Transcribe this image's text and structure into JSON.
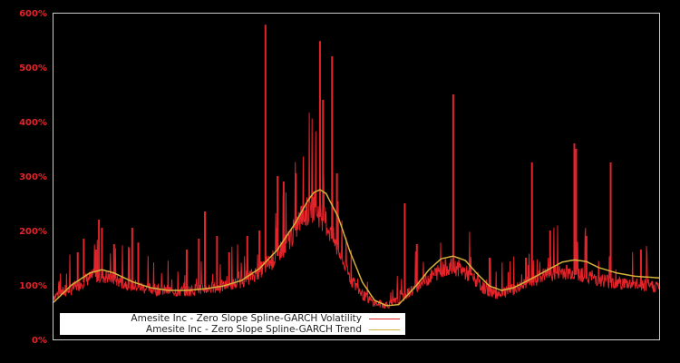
{
  "chart_data": {
    "type": "line",
    "title": "",
    "xlabel": "",
    "ylabel": "",
    "ylim": [
      0,
      600
    ],
    "y_tick_labels": [
      "0%",
      "100%",
      "200%",
      "300%",
      "400%",
      "500%",
      "600%"
    ],
    "y_ticks": [
      0,
      100,
      200,
      300,
      400,
      500,
      600
    ],
    "grid": false,
    "legend_position": "lower-left inside",
    "background": "#000000",
    "x_range_index": [
      0,
      100
    ],
    "series": [
      {
        "name": "Amesite Inc - Zero Slope Spline-GARCH Volatility",
        "color": "#e3242b",
        "baseline_points": [
          [
            0,
            78
          ],
          [
            3,
            90
          ],
          [
            5,
            105
          ],
          [
            7,
            115
          ],
          [
            9,
            112
          ],
          [
            12,
            100
          ],
          [
            15,
            92
          ],
          [
            18,
            88
          ],
          [
            21,
            86
          ],
          [
            24,
            90
          ],
          [
            27,
            93
          ],
          [
            30,
            100
          ],
          [
            33,
            115
          ],
          [
            36,
            140
          ],
          [
            39,
            180
          ],
          [
            41,
            220
          ],
          [
            43,
            240
          ],
          [
            45,
            210
          ],
          [
            47,
            160
          ],
          [
            49,
            110
          ],
          [
            51,
            80
          ],
          [
            53,
            65
          ],
          [
            55,
            62
          ],
          [
            57,
            70
          ],
          [
            60,
            95
          ],
          [
            63,
            118
          ],
          [
            65,
            130
          ],
          [
            67,
            128
          ],
          [
            69,
            112
          ],
          [
            71,
            92
          ],
          [
            73,
            82
          ],
          [
            75,
            85
          ],
          [
            78,
            100
          ],
          [
            81,
            115
          ],
          [
            84,
            122
          ],
          [
            87,
            118
          ],
          [
            90,
            108
          ],
          [
            93,
            102
          ],
          [
            96,
            98
          ],
          [
            100,
            95
          ]
        ],
        "spikes": [
          [
            2,
            100
          ],
          [
            4,
            160
          ],
          [
            5,
            185
          ],
          [
            7,
            165
          ],
          [
            7.5,
            220
          ],
          [
            8,
            205
          ],
          [
            10,
            175
          ],
          [
            13,
            205
          ],
          [
            14,
            178
          ],
          [
            22,
            165
          ],
          [
            24,
            185
          ],
          [
            25,
            235
          ],
          [
            27,
            190
          ],
          [
            29,
            160
          ],
          [
            32,
            190
          ],
          [
            34,
            200
          ],
          [
            35,
            578
          ],
          [
            37,
            300
          ],
          [
            38,
            290
          ],
          [
            40,
            305
          ],
          [
            44,
            548
          ],
          [
            44.5,
            440
          ],
          [
            46,
            520
          ],
          [
            46.8,
            305
          ],
          [
            58,
            250
          ],
          [
            60,
            175
          ],
          [
            66,
            450
          ],
          [
            72,
            150
          ],
          [
            78,
            150
          ],
          [
            79,
            325
          ],
          [
            82,
            200
          ],
          [
            86,
            360
          ],
          [
            86.3,
            350
          ],
          [
            88,
            190
          ],
          [
            92,
            325
          ],
          [
            97,
            165
          ]
        ]
      },
      {
        "name": "Amesite Inc - Zero Slope Spline-GARCH Trend",
        "color": "#d4b13a",
        "points": [
          [
            0,
            68
          ],
          [
            3,
            100
          ],
          [
            6,
            122
          ],
          [
            8,
            128
          ],
          [
            10,
            122
          ],
          [
            13,
            106
          ],
          [
            16,
            95
          ],
          [
            19,
            90
          ],
          [
            22,
            90
          ],
          [
            25,
            93
          ],
          [
            28,
            98
          ],
          [
            31,
            108
          ],
          [
            34,
            130
          ],
          [
            37,
            165
          ],
          [
            40,
            215
          ],
          [
            42,
            255
          ],
          [
            43,
            270
          ],
          [
            44,
            275
          ],
          [
            45,
            268
          ],
          [
            47,
            225
          ],
          [
            49,
            160
          ],
          [
            51,
            105
          ],
          [
            53,
            72
          ],
          [
            55,
            62
          ],
          [
            57,
            64
          ],
          [
            60,
            100
          ],
          [
            62,
            128
          ],
          [
            64,
            148
          ],
          [
            66,
            153
          ],
          [
            68,
            145
          ],
          [
            70,
            120
          ],
          [
            72,
            98
          ],
          [
            74,
            90
          ],
          [
            76,
            95
          ],
          [
            79,
            112
          ],
          [
            82,
            130
          ],
          [
            84,
            142
          ],
          [
            86,
            146
          ],
          [
            88,
            143
          ],
          [
            90,
            132
          ],
          [
            93,
            122
          ],
          [
            96,
            116
          ],
          [
            100,
            113
          ]
        ]
      }
    ]
  },
  "legend": {
    "items": [
      {
        "label": "Amesite Inc - Zero Slope Spline-GARCH Volatility",
        "color": "#e3242b"
      },
      {
        "label": "Amesite Inc - Zero Slope Spline-GARCH Trend",
        "color": "#d4b13a"
      }
    ]
  },
  "axes": {
    "frame_color": "#cccccc",
    "tick_label_color": "#e3242b"
  }
}
